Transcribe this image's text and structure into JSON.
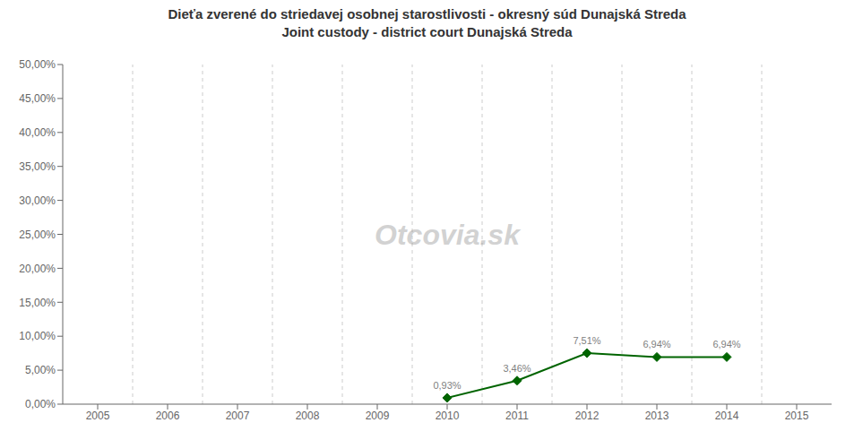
{
  "chart_data": {
    "type": "line",
    "title": "Dieťa zverené do striedavej osobnej starostlivosti - okresný súd Dunajská Streda",
    "subtitle": "Joint custody - district court Dunajská Streda",
    "x": [
      2010,
      2011,
      2012,
      2013,
      2014
    ],
    "values": [
      0.0093,
      0.0346,
      0.0751,
      0.0694,
      0.0694
    ],
    "value_labels": [
      "0,93%",
      "3,46%",
      "7,51%",
      "6,94%",
      "6,94%"
    ],
    "data_labels": true,
    "color": "#006400",
    "marker": "diamond",
    "xlim": [
      2004.5,
      2015.5
    ],
    "xticks": [
      2005,
      2006,
      2007,
      2008,
      2009,
      2010,
      2011,
      2012,
      2013,
      2014,
      2015
    ],
    "ylim": [
      0.0,
      0.5
    ],
    "yticks": [
      {
        "value": 0.0,
        "label": "0,00%"
      },
      {
        "value": 0.05,
        "label": "5,00%"
      },
      {
        "value": 0.1,
        "label": "10,00%"
      },
      {
        "value": 0.15,
        "label": "15,00%"
      },
      {
        "value": 0.2,
        "label": "20,00%"
      },
      {
        "value": 0.25,
        "label": "25,00%"
      },
      {
        "value": 0.3,
        "label": "30,00%"
      },
      {
        "value": 0.35,
        "label": "35,00%"
      },
      {
        "value": 0.4,
        "label": "40,00%"
      },
      {
        "value": 0.45,
        "label": "45,00%"
      },
      {
        "value": 0.5,
        "label": "50,00%"
      }
    ],
    "vlines": [
      2005.5,
      2006.5,
      2007.5,
      2008.5,
      2009.5,
      2010.5,
      2011.5,
      2012.5,
      2013.5,
      2014.5
    ],
    "annotations": [
      "Otcovia.sk"
    ],
    "grid": false
  }
}
